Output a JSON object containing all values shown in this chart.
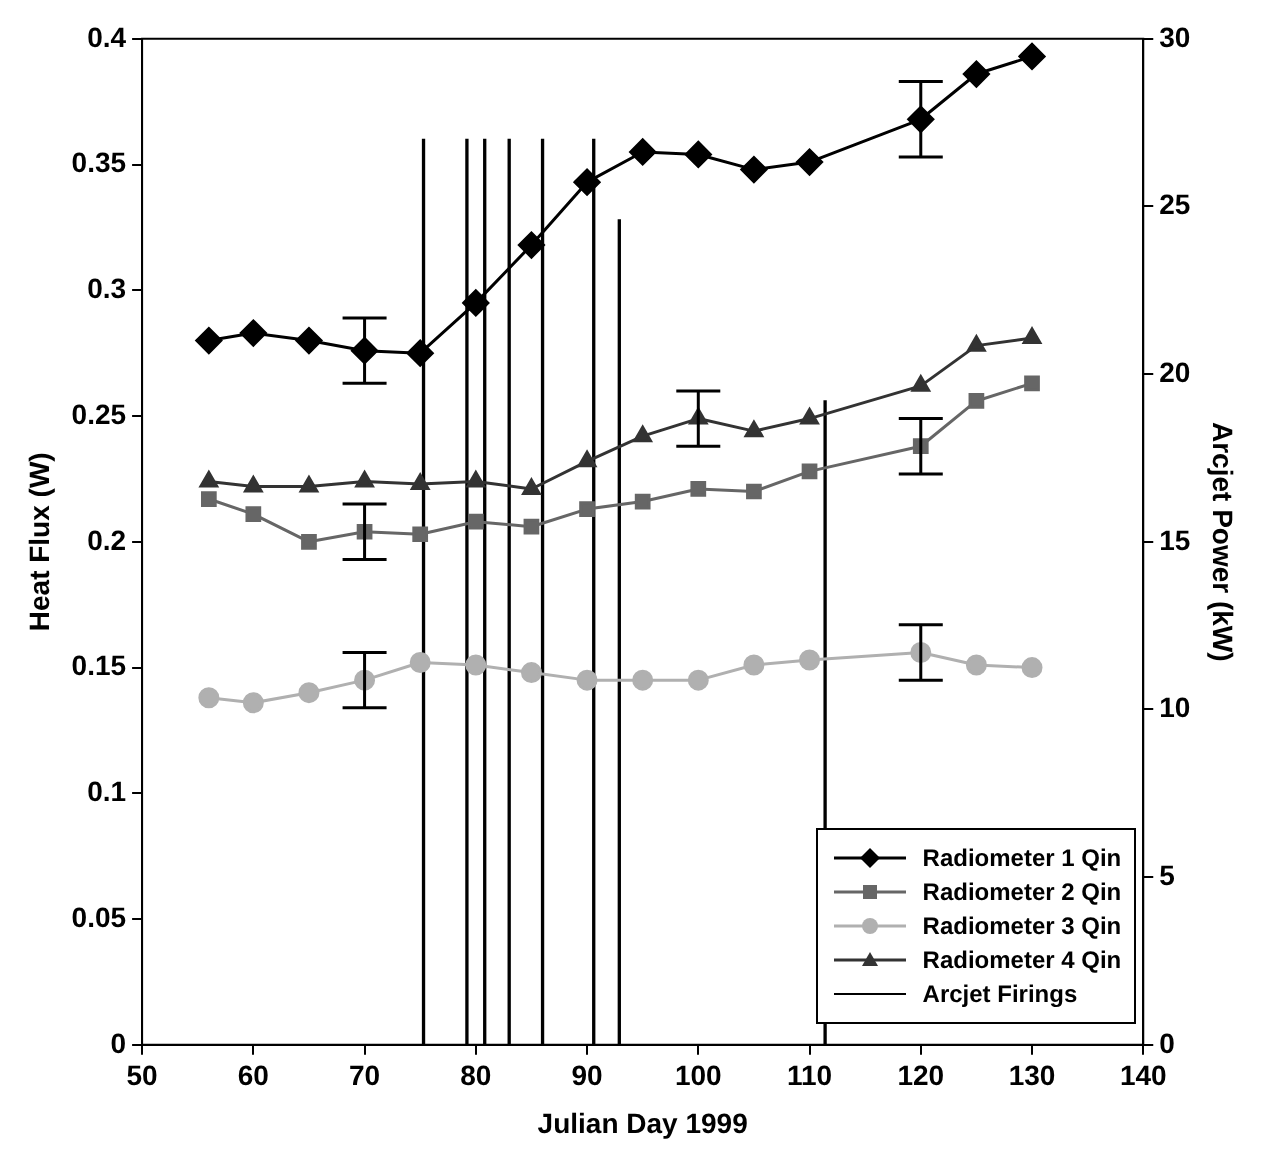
{
  "chart_data": {
    "type": "line",
    "xlabel": "Julian Day 1999",
    "ylabel": "Heat Flux (W)",
    "y2label": "Arcjet Power (kW)",
    "xlim": [
      50,
      140
    ],
    "xticks": [
      50,
      60,
      70,
      80,
      90,
      100,
      110,
      120,
      130,
      140
    ],
    "ylim": [
      0,
      0.4
    ],
    "yticks": [
      0,
      0.05,
      0.1,
      0.15,
      0.2,
      0.25,
      0.3,
      0.35,
      0.4
    ],
    "y2lim": [
      0,
      30
    ],
    "y2ticks": [
      0,
      5,
      10,
      15,
      20,
      25,
      30
    ],
    "grid": false,
    "legend": "bottom right",
    "x": [
      56,
      60,
      65,
      70,
      75,
      80,
      85,
      90,
      95,
      100,
      105,
      110,
      120,
      125,
      130
    ],
    "series": [
      {
        "name": "Radiometer 1 Qin",
        "color": "#000000",
        "marker": "diamond",
        "values": [
          0.28,
          0.283,
          0.28,
          0.276,
          0.275,
          0.295,
          0.318,
          0.343,
          0.355,
          0.354,
          0.348,
          0.351,
          0.368,
          0.386,
          0.393
        ],
        "errors": [
          null,
          null,
          null,
          0.013,
          null,
          null,
          null,
          null,
          null,
          null,
          null,
          null,
          0.015,
          null,
          null
        ]
      },
      {
        "name": "Radiometer 2 Qin",
        "color": "#666666",
        "marker": "square",
        "values": [
          0.217,
          0.211,
          0.2,
          0.204,
          0.203,
          0.208,
          0.206,
          0.213,
          0.216,
          0.221,
          0.22,
          0.228,
          0.238,
          0.256,
          0.263
        ],
        "errors": [
          null,
          null,
          null,
          0.011,
          null,
          null,
          null,
          null,
          null,
          null,
          null,
          null,
          0.011,
          null,
          null
        ]
      },
      {
        "name": "Radiometer 3 Qin",
        "color": "#b0b0b0",
        "marker": "circle",
        "values": [
          0.138,
          0.136,
          0.14,
          0.145,
          0.152,
          0.151,
          0.148,
          0.145,
          0.145,
          0.145,
          0.151,
          0.153,
          0.156,
          0.151,
          0.15
        ],
        "errors": [
          null,
          null,
          null,
          0.011,
          null,
          null,
          null,
          null,
          null,
          null,
          null,
          null,
          0.011,
          null,
          null
        ]
      },
      {
        "name": "Radiometer 4 Qin",
        "color": "#333333",
        "marker": "triangle",
        "values": [
          0.224,
          0.222,
          0.222,
          0.224,
          0.223,
          0.224,
          0.221,
          0.232,
          0.242,
          0.249,
          0.244,
          0.249,
          0.262,
          0.278,
          0.281
        ],
        "errors": [
          null,
          null,
          null,
          null,
          null,
          null,
          null,
          null,
          null,
          0.011,
          null,
          null,
          null,
          null,
          null
        ]
      },
      {
        "name": "Arcjet Firings",
        "type": "bar",
        "axis": "y2",
        "color": "#000000",
        "x": [
          75.3,
          79.2,
          80.8,
          83,
          86,
          90.6,
          92.9,
          111.4
        ],
        "values": [
          27,
          27,
          27,
          27,
          27,
          27,
          24.6,
          19.2
        ]
      }
    ]
  }
}
